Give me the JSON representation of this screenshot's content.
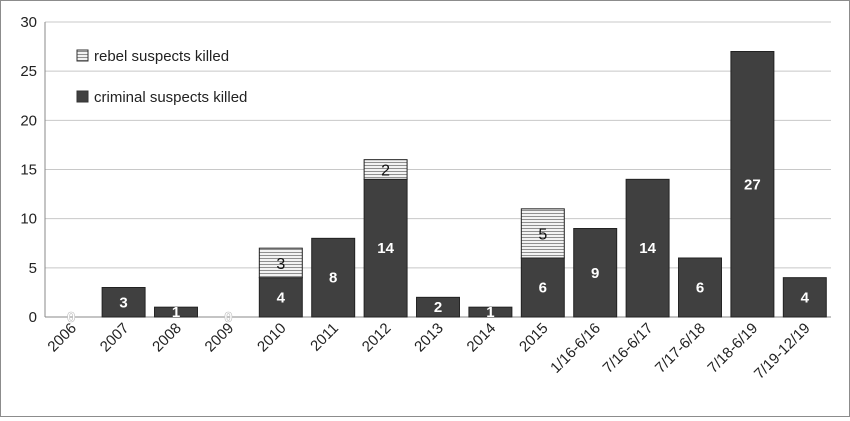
{
  "chart_data": {
    "type": "bar",
    "stacked": true,
    "categories": [
      "2006",
      "2007",
      "2008",
      "2009",
      "2010",
      "2011",
      "2012",
      "2013",
      "2014",
      "2015",
      "1/16-6/16",
      "7/16-6/17",
      "7/17-6/18",
      "7/18-6/19",
      "7/19-12/19"
    ],
    "series": [
      {
        "name": "criminal suspects killed",
        "color": "#404040",
        "values": [
          0,
          3,
          1,
          0,
          4,
          8,
          14,
          2,
          1,
          6,
          9,
          14,
          6,
          27,
          4
        ],
        "labels": [
          "0",
          "3",
          "1",
          "0",
          "4",
          "8",
          "14",
          "2",
          "1",
          "6",
          "9",
          "14",
          "6",
          "27",
          "4"
        ]
      },
      {
        "name": "rebel suspects killed",
        "color": "#e6e6e6",
        "pattern": "horizontal-stripes",
        "values": [
          0,
          0,
          0,
          0,
          3,
          0,
          2,
          0,
          0,
          5,
          0,
          0,
          0,
          0,
          0
        ],
        "labels": [
          "",
          "",
          "",
          "",
          "3",
          "",
          "2",
          "",
          "",
          "5",
          "",
          "",
          "",
          "",
          ""
        ]
      }
    ],
    "ylim": [
      0,
      30
    ],
    "yticks": [
      "0",
      "5",
      "10",
      "15",
      "20",
      "25",
      "30"
    ],
    "grid": true,
    "legend_position": "top-left",
    "legend": [
      "rebel suspects killed",
      "criminal suspects killed"
    ]
  }
}
